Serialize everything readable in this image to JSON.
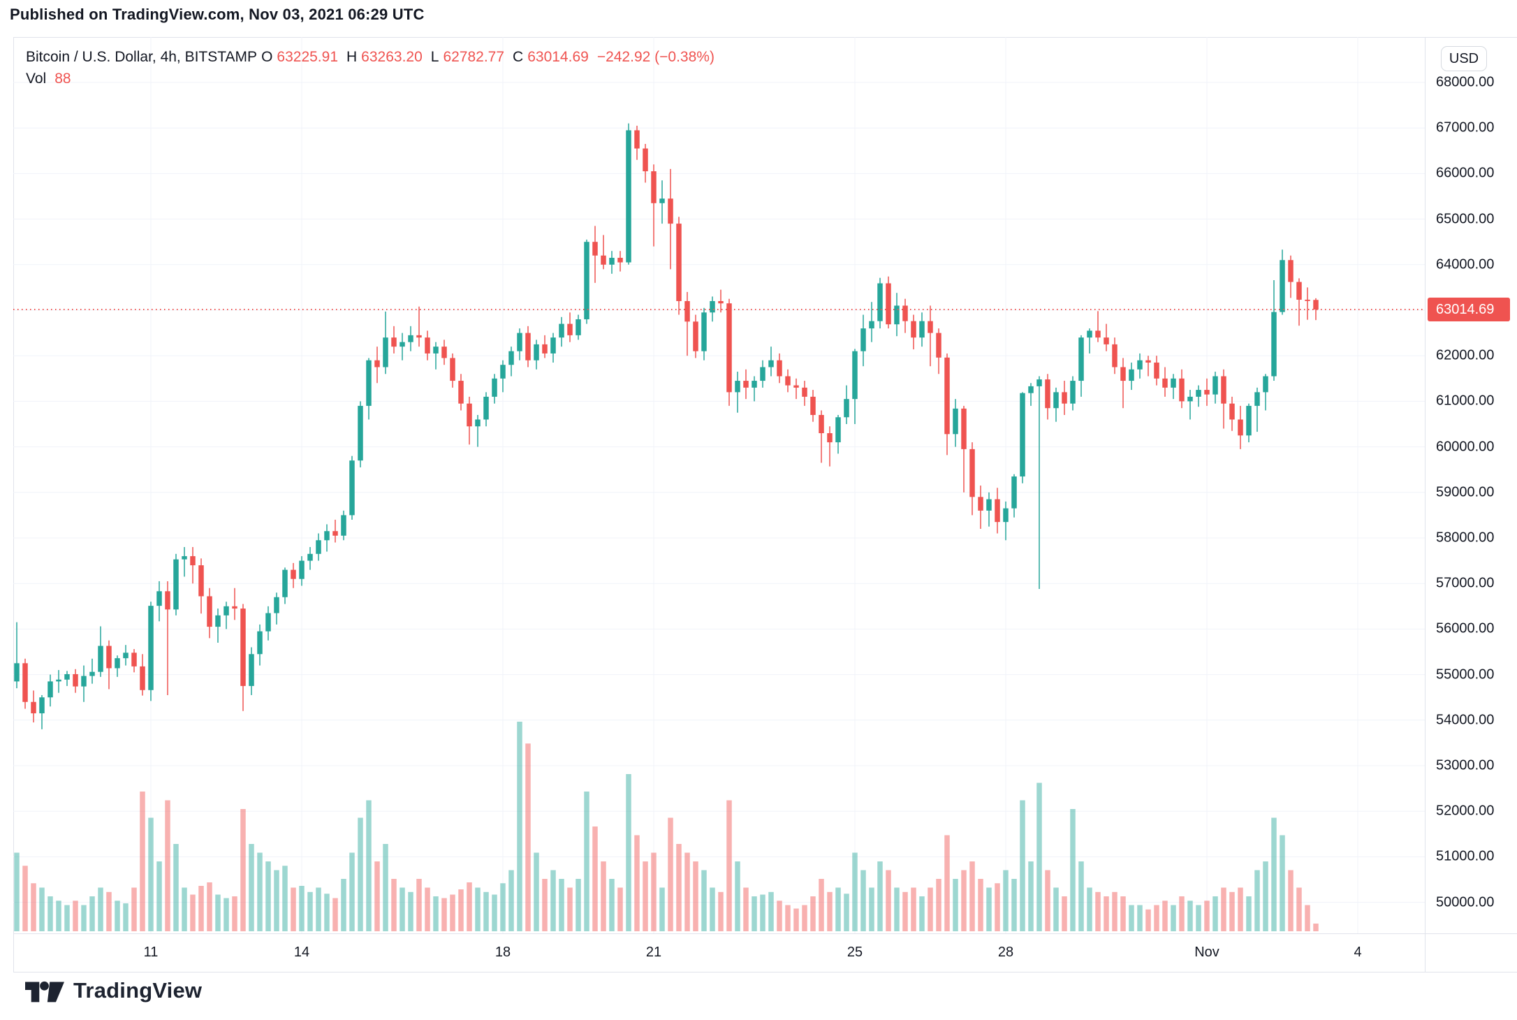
{
  "published_line": "Published on TradingView.com, Nov 03, 2021 06:29 UTC",
  "legend": {
    "symbol": "Bitcoin / U.S. Dollar, 4h, BITSTAMP",
    "o_letter": "O",
    "o_value": "63225.91",
    "h_letter": "H",
    "h_value": "63263.20",
    "l_letter": "L",
    "l_value": "62782.77",
    "c_letter": "C",
    "c_value": "63014.69",
    "change": "−242.92 (−0.38%)",
    "vol_label": "Vol",
    "vol_value": "88"
  },
  "price_axis": {
    "currency": "USD",
    "last_price_label": "63014.69",
    "ticks": [
      "68000.00",
      "67000.00",
      "66000.00",
      "65000.00",
      "64000.00",
      "63000.00",
      "62000.00",
      "61000.00",
      "60000.00",
      "59000.00",
      "58000.00",
      "57000.00",
      "56000.00",
      "55000.00",
      "54000.00",
      "53000.00",
      "52000.00",
      "51000.00",
      "50000.00"
    ]
  },
  "time_axis": {
    "labels": [
      {
        "label": "11",
        "index": 16
      },
      {
        "label": "14",
        "index": 34
      },
      {
        "label": "18",
        "index": 58
      },
      {
        "label": "21",
        "index": 76
      },
      {
        "label": "25",
        "index": 100
      },
      {
        "label": "28",
        "index": 118
      },
      {
        "label": "Nov",
        "index": 142
      },
      {
        "label": "4",
        "index": 160
      }
    ]
  },
  "logo": {
    "brand": "TradingView"
  },
  "colors": {
    "up": "#26a69a",
    "down": "#ef5350",
    "vol_up": "rgba(38,166,154,0.45)",
    "vol_down": "rgba(239,83,80,0.45)",
    "grid": "#f0f3fa",
    "border": "#e0e3eb",
    "text": "#131722",
    "accent_red": "#ef5350",
    "badge_bg": "#ef5350"
  },
  "chart_data": {
    "type": "candlestick",
    "title": "Bitcoin / U.S. Dollar",
    "exchange": "BITSTAMP",
    "interval": "4h",
    "ylabel": "USD",
    "ylim": [
      49300,
      69200
    ],
    "grid": true,
    "last_close": 63014.69,
    "last_change": -242.92,
    "last_change_pct": -0.38,
    "current_ohlc": {
      "o": 63225.91,
      "h": 63263.2,
      "l": 62782.77,
      "c": 63014.69,
      "vol": 88
    },
    "volume_scale_max": 2400,
    "columns": [
      "time",
      "open",
      "high",
      "low",
      "close",
      "volume"
    ],
    "candles": [
      [
        "10-08 08:00",
        54850,
        56150,
        54700,
        55250,
        900
      ],
      [
        "10-08 12:00",
        55250,
        55350,
        54250,
        54400,
        750
      ],
      [
        "10-08 16:00",
        54400,
        54650,
        53950,
        54150,
        550
      ],
      [
        "10-08 20:00",
        54150,
        54550,
        53800,
        54500,
        500
      ],
      [
        "10-09 00:00",
        54500,
        55000,
        54300,
        54850,
        400
      ],
      [
        "10-09 04:00",
        54850,
        55100,
        54600,
        54890,
        350
      ],
      [
        "10-09 08:00",
        54890,
        55080,
        54750,
        55010,
        300
      ],
      [
        "10-09 12:00",
        55010,
        55120,
        54600,
        54740,
        350
      ],
      [
        "10-09 16:00",
        54740,
        55200,
        54400,
        54970,
        300
      ],
      [
        "10-09 20:00",
        54970,
        55350,
        54800,
        55060,
        400
      ],
      [
        "10-10 00:00",
        55060,
        56060,
        54950,
        55630,
        500
      ],
      [
        "10-10 04:00",
        55630,
        55750,
        54680,
        55140,
        450
      ],
      [
        "10-10 08:00",
        55140,
        55420,
        54950,
        55360,
        350
      ],
      [
        "10-10 12:00",
        55360,
        55650,
        55200,
        55480,
        320
      ],
      [
        "10-10 16:00",
        55480,
        55560,
        55050,
        55180,
        500
      ],
      [
        "10-10 20:00",
        55180,
        55450,
        54540,
        54660,
        1600
      ],
      [
        "10-11 00:00",
        54660,
        56600,
        54420,
        56510,
        1300
      ],
      [
        "10-11 04:00",
        56510,
        57050,
        56170,
        56830,
        800
      ],
      [
        "10-11 08:00",
        56830,
        57050,
        54550,
        56430,
        1500
      ],
      [
        "10-11 12:00",
        56430,
        57650,
        56300,
        57530,
        1000
      ],
      [
        "10-11 16:00",
        57530,
        57800,
        57150,
        57600,
        500
      ],
      [
        "10-11 20:00",
        57600,
        57800,
        57000,
        57400,
        420
      ],
      [
        "10-12 00:00",
        57400,
        57550,
        56340,
        56720,
        520
      ],
      [
        "10-12 04:00",
        56720,
        56900,
        55800,
        56050,
        560
      ],
      [
        "10-12 08:00",
        56050,
        56450,
        55700,
        56300,
        420
      ],
      [
        "10-12 12:00",
        56300,
        56600,
        56000,
        56500,
        380
      ],
      [
        "10-12 16:00",
        56500,
        56900,
        56200,
        56450,
        400
      ],
      [
        "10-12 20:00",
        56450,
        56550,
        54200,
        54750,
        1400
      ],
      [
        "10-13 00:00",
        54750,
        55600,
        54550,
        55450,
        1000
      ],
      [
        "10-13 04:00",
        55450,
        56100,
        55200,
        55950,
        900
      ],
      [
        "10-13 08:00",
        55950,
        56500,
        55750,
        56350,
        800
      ],
      [
        "10-13 12:00",
        56350,
        56800,
        56100,
        56700,
        700
      ],
      [
        "10-13 16:00",
        56700,
        57350,
        56550,
        57300,
        750
      ],
      [
        "10-13 20:00",
        57300,
        57450,
        56900,
        57100,
        500
      ],
      [
        "10-14 00:00",
        57100,
        57600,
        56950,
        57500,
        520
      ],
      [
        "10-14 04:00",
        57500,
        57800,
        57300,
        57650,
        450
      ],
      [
        "10-14 08:00",
        57650,
        58100,
        57500,
        57950,
        500
      ],
      [
        "10-14 12:00",
        57950,
        58300,
        57700,
        58150,
        430
      ],
      [
        "10-14 16:00",
        58150,
        58400,
        57900,
        58050,
        380
      ],
      [
        "10-14 20:00",
        58050,
        58600,
        57950,
        58500,
        600
      ],
      [
        "10-15 00:00",
        58500,
        59800,
        58400,
        59700,
        900
      ],
      [
        "10-15 04:00",
        59700,
        61000,
        59550,
        60900,
        1300
      ],
      [
        "10-15 08:00",
        60900,
        61950,
        60600,
        61900,
        1500
      ],
      [
        "10-15 12:00",
        61900,
        62200,
        61400,
        61750,
        800
      ],
      [
        "10-15 16:00",
        61750,
        62970,
        61600,
        62400,
        1000
      ],
      [
        "10-15 20:00",
        62400,
        62650,
        62050,
        62200,
        600
      ],
      [
        "10-16 00:00",
        62200,
        62500,
        61900,
        62300,
        500
      ],
      [
        "10-16 04:00",
        62300,
        62650,
        62100,
        62450,
        450
      ],
      [
        "10-16 08:00",
        62450,
        63080,
        62200,
        62400,
        600
      ],
      [
        "10-16 12:00",
        62400,
        62550,
        61900,
        62050,
        500
      ],
      [
        "10-16 16:00",
        62050,
        62300,
        61700,
        62200,
        400
      ],
      [
        "10-16 20:00",
        62200,
        62350,
        61800,
        61950,
        380
      ],
      [
        "10-17 00:00",
        61950,
        62050,
        61300,
        61450,
        420
      ],
      [
        "10-17 04:00",
        61450,
        61600,
        60800,
        60950,
        480
      ],
      [
        "10-17 08:00",
        60950,
        61100,
        60050,
        60450,
        560
      ],
      [
        "10-17 12:00",
        60450,
        60700,
        60000,
        60600,
        500
      ],
      [
        "10-17 16:00",
        60600,
        61200,
        60450,
        61100,
        450
      ],
      [
        "10-17 20:00",
        61100,
        61600,
        60950,
        61500,
        420
      ],
      [
        "10-18 00:00",
        61500,
        61900,
        61200,
        61800,
        550
      ],
      [
        "10-18 04:00",
        61800,
        62200,
        61550,
        62100,
        700
      ],
      [
        "10-18 08:00",
        62100,
        62600,
        61900,
        62500,
        2400
      ],
      [
        "10-18 12:00",
        62500,
        62650,
        61750,
        61900,
        2150
      ],
      [
        "10-18 16:00",
        61900,
        62350,
        61700,
        62250,
        900
      ],
      [
        "10-18 20:00",
        62250,
        62450,
        61950,
        62050,
        600
      ],
      [
        "10-19 00:00",
        62050,
        62500,
        61850,
        62400,
        700
      ],
      [
        "10-19 04:00",
        62400,
        62850,
        62200,
        62700,
        600
      ],
      [
        "10-19 08:00",
        62700,
        62950,
        62300,
        62450,
        500
      ],
      [
        "10-19 12:00",
        62450,
        62900,
        62350,
        62800,
        600
      ],
      [
        "10-19 16:00",
        62800,
        64550,
        62700,
        64500,
        1600
      ],
      [
        "10-19 20:00",
        64500,
        64850,
        63600,
        64200,
        1200
      ],
      [
        "10-20 00:00",
        64200,
        64650,
        63900,
        64000,
        800
      ],
      [
        "10-20 04:00",
        64000,
        64300,
        63800,
        64150,
        600
      ],
      [
        "10-20 08:00",
        64150,
        64300,
        63850,
        64050,
        500
      ],
      [
        "10-20 12:00",
        64050,
        67100,
        64000,
        66950,
        1800
      ],
      [
        "10-20 16:00",
        66950,
        67050,
        66300,
        66550,
        1100
      ],
      [
        "10-20 20:00",
        66550,
        66650,
        65800,
        66050,
        800
      ],
      [
        "10-21 00:00",
        66050,
        66200,
        64400,
        65350,
        900
      ],
      [
        "10-21 04:00",
        65350,
        65850,
        64900,
        65450,
        500
      ],
      [
        "10-21 08:00",
        65450,
        66100,
        63900,
        64900,
        1300
      ],
      [
        "10-21 12:00",
        64900,
        65050,
        62900,
        63200,
        1000
      ],
      [
        "10-21 16:00",
        63200,
        63400,
        62000,
        62750,
        900
      ],
      [
        "10-21 20:00",
        62750,
        62900,
        61950,
        62100,
        800
      ],
      [
        "10-22 00:00",
        62100,
        63050,
        61900,
        62950,
        700
      ],
      [
        "10-22 04:00",
        62950,
        63300,
        62750,
        63200,
        500
      ],
      [
        "10-22 08:00",
        63200,
        63450,
        62950,
        63150,
        450
      ],
      [
        "10-22 12:00",
        63150,
        63250,
        60900,
        61200,
        1500
      ],
      [
        "10-22 16:00",
        61200,
        61650,
        60750,
        61450,
        800
      ],
      [
        "10-22 20:00",
        61450,
        61700,
        61050,
        61300,
        500
      ],
      [
        "10-23 00:00",
        61300,
        61550,
        61000,
        61450,
        400
      ],
      [
        "10-23 04:00",
        61450,
        61900,
        61300,
        61750,
        420
      ],
      [
        "10-23 08:00",
        61750,
        62200,
        61550,
        61900,
        450
      ],
      [
        "10-23 12:00",
        61900,
        62050,
        61400,
        61550,
        350
      ],
      [
        "10-23 16:00",
        61550,
        61700,
        61200,
        61350,
        300
      ],
      [
        "10-23 20:00",
        61350,
        61500,
        61050,
        61300,
        260
      ],
      [
        "10-24 00:00",
        61300,
        61450,
        60900,
        61100,
        300
      ],
      [
        "10-24 04:00",
        61100,
        61250,
        60550,
        60700,
        400
      ],
      [
        "10-24 08:00",
        60700,
        60800,
        59650,
        60300,
        600
      ],
      [
        "10-24 12:00",
        60300,
        60450,
        59570,
        60100,
        450
      ],
      [
        "10-24 16:00",
        60100,
        60700,
        59850,
        60650,
        500
      ],
      [
        "10-24 20:00",
        60650,
        61350,
        60500,
        61050,
        430
      ],
      [
        "10-25 00:00",
        61050,
        62150,
        60500,
        62100,
        900
      ],
      [
        "10-25 04:00",
        62100,
        62900,
        61770,
        62600,
        700
      ],
      [
        "10-25 08:00",
        62600,
        63180,
        62300,
        62760,
        500
      ],
      [
        "10-25 12:00",
        62760,
        63710,
        62600,
        63590,
        800
      ],
      [
        "10-25 16:00",
        63590,
        63740,
        62600,
        62690,
        700
      ],
      [
        "10-25 20:00",
        62690,
        63380,
        62430,
        63100,
        500
      ],
      [
        "10-26 00:00",
        63100,
        63250,
        62500,
        62760,
        450
      ],
      [
        "10-26 04:00",
        62760,
        62900,
        62140,
        62400,
        500
      ],
      [
        "10-26 08:00",
        62400,
        62950,
        62200,
        62760,
        400
      ],
      [
        "10-26 12:00",
        62760,
        63100,
        61770,
        62500,
        500
      ],
      [
        "10-26 16:00",
        62500,
        62600,
        61600,
        61960,
        600
      ],
      [
        "10-26 20:00",
        61960,
        62050,
        59820,
        60280,
        1100
      ],
      [
        "10-27 00:00",
        60280,
        61050,
        60000,
        60840,
        600
      ],
      [
        "10-27 04:00",
        60840,
        60900,
        59000,
        59950,
        700
      ],
      [
        "10-27 08:00",
        59950,
        60100,
        58500,
        58900,
        800
      ],
      [
        "10-27 12:00",
        58900,
        59150,
        58200,
        58600,
        600
      ],
      [
        "10-27 16:00",
        58600,
        59000,
        58250,
        58850,
        500
      ],
      [
        "10-27 20:00",
        58850,
        59100,
        58100,
        58350,
        550
      ],
      [
        "10-28 00:00",
        58350,
        58800,
        57950,
        58650,
        700
      ],
      [
        "10-28 04:00",
        58650,
        59400,
        58450,
        59350,
        600
      ],
      [
        "10-28 08:00",
        59350,
        61200,
        59200,
        61180,
        1500
      ],
      [
        "10-28 12:00",
        61180,
        61400,
        60900,
        61330,
        800
      ],
      [
        "10-28 16:00",
        61330,
        61550,
        56880,
        61480,
        1700
      ],
      [
        "10-28 20:00",
        61480,
        61600,
        60600,
        60850,
        700
      ],
      [
        "10-29 00:00",
        60850,
        61300,
        60550,
        61200,
        500
      ],
      [
        "10-29 04:00",
        61200,
        61450,
        60700,
        60950,
        400
      ],
      [
        "10-29 08:00",
        60950,
        61550,
        60800,
        61450,
        1400
      ],
      [
        "10-29 12:00",
        61450,
        62450,
        61100,
        62400,
        800
      ],
      [
        "10-29 16:00",
        62400,
        62600,
        62050,
        62550,
        500
      ],
      [
        "10-29 20:00",
        62550,
        62980,
        62300,
        62400,
        450
      ],
      [
        "10-30 00:00",
        62400,
        62700,
        62100,
        62250,
        400
      ],
      [
        "10-30 04:00",
        62250,
        62400,
        61600,
        61750,
        450
      ],
      [
        "10-30 08:00",
        61750,
        61950,
        60850,
        61450,
        400
      ],
      [
        "10-30 12:00",
        61450,
        61850,
        61250,
        61700,
        300
      ],
      [
        "10-30 16:00",
        61700,
        62050,
        61500,
        61900,
        300
      ],
      [
        "10-30 20:00",
        61900,
        62000,
        61550,
        61850,
        250
      ],
      [
        "10-31 00:00",
        61850,
        62000,
        61350,
        61500,
        300
      ],
      [
        "10-31 04:00",
        61500,
        61750,
        61100,
        61300,
        350
      ],
      [
        "10-31 08:00",
        61300,
        61600,
        61050,
        61500,
        300
      ],
      [
        "10-31 12:00",
        61500,
        61700,
        60850,
        61000,
        400
      ],
      [
        "10-31 16:00",
        61000,
        61250,
        60600,
        61100,
        350
      ],
      [
        "10-31 20:00",
        61100,
        61350,
        60880,
        61250,
        300
      ],
      [
        "11-01 00:00",
        61250,
        61500,
        60900,
        61150,
        350
      ],
      [
        "11-01 04:00",
        61150,
        61650,
        60950,
        61550,
        400
      ],
      [
        "11-01 08:00",
        61550,
        61700,
        60400,
        60950,
        500
      ],
      [
        "11-01 12:00",
        60950,
        61100,
        60350,
        60600,
        450
      ],
      [
        "11-01 16:00",
        60600,
        60900,
        59950,
        60250,
        500
      ],
      [
        "11-01 20:00",
        60250,
        60950,
        60100,
        60900,
        400
      ],
      [
        "11-02 00:00",
        60900,
        61300,
        60330,
        61200,
        700
      ],
      [
        "11-02 04:00",
        61200,
        61600,
        60800,
        61550,
        800
      ],
      [
        "11-02 08:00",
        61550,
        63660,
        61450,
        62960,
        1300
      ],
      [
        "11-02 12:00",
        62960,
        64330,
        62900,
        64100,
        1100
      ],
      [
        "11-02 16:00",
        64100,
        64200,
        63270,
        63620,
        700
      ],
      [
        "11-02 20:00",
        63620,
        63700,
        62660,
        63230,
        500
      ],
      [
        "11-03 00:00",
        63230,
        63500,
        62790,
        63226,
        300
      ],
      [
        "11-03 04:00",
        63225.91,
        63263.2,
        62782.77,
        63014.69,
        88
      ]
    ]
  }
}
